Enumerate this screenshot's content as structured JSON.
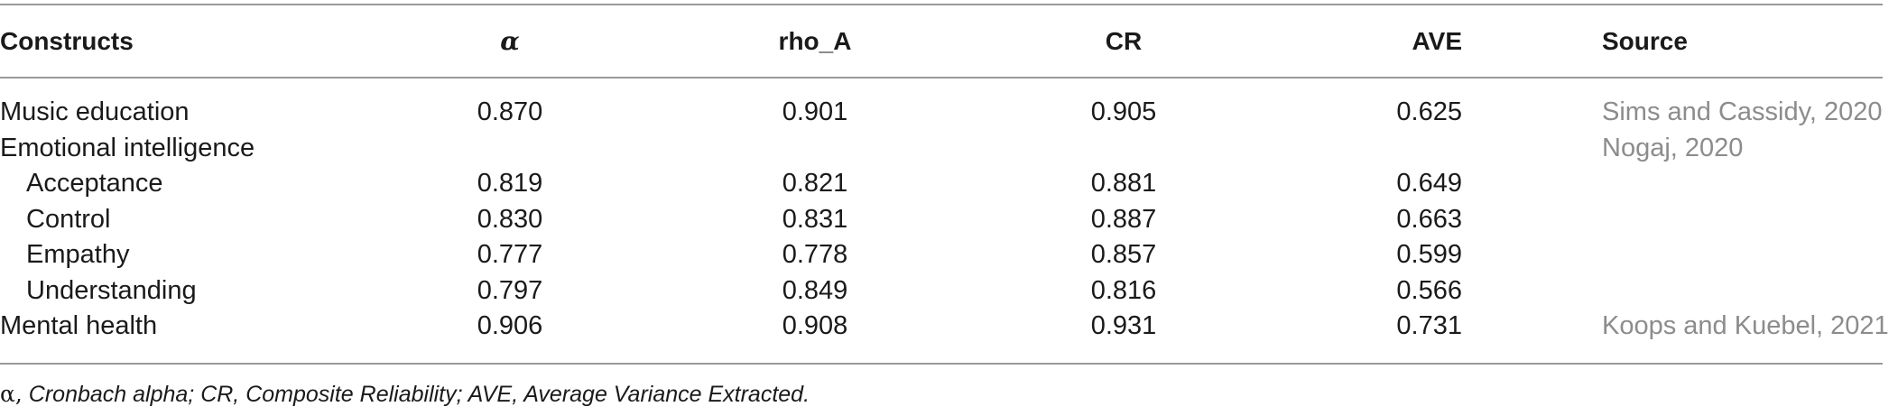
{
  "table": {
    "headers": {
      "constructs": "Constructs",
      "alpha": "α",
      "rho_a": "rho_A",
      "cr": "CR",
      "ave": "AVE",
      "source": "Source"
    },
    "rows": [
      {
        "construct": "Music education",
        "alpha": "0.870",
        "rho_a": "0.901",
        "cr": "0.905",
        "ave": "0.625",
        "source": "Sims and Cassidy, 2020"
      },
      {
        "construct": "Emotional intelligence",
        "alpha": "",
        "rho_a": "",
        "cr": "",
        "ave": "",
        "source": "Nogaj, 2020"
      },
      {
        "construct": "Acceptance",
        "alpha": "0.819",
        "rho_a": "0.821",
        "cr": "0.881",
        "ave": "0.649",
        "source": ""
      },
      {
        "construct": "Control",
        "alpha": "0.830",
        "rho_a": "0.831",
        "cr": "0.887",
        "ave": "0.663",
        "source": ""
      },
      {
        "construct": "Empathy",
        "alpha": "0.777",
        "rho_a": "0.778",
        "cr": "0.857",
        "ave": "0.599",
        "source": ""
      },
      {
        "construct": "Understanding",
        "alpha": "0.797",
        "rho_a": "0.849",
        "cr": "0.816",
        "ave": "0.566",
        "source": ""
      },
      {
        "construct": "Mental health",
        "alpha": "0.906",
        "rho_a": "0.908",
        "cr": "0.931",
        "ave": "0.731",
        "source": "Koops and Kuebel, 2021"
      }
    ]
  },
  "footnote": {
    "symbol": "α,",
    "text": " Cronbach alpha; CR, Composite Reliability; AVE, Average Variance Extracted."
  },
  "colors": {
    "text": "#1a1a1a",
    "source_text": "#8c8c8c",
    "rule": "#9a9a9a"
  }
}
